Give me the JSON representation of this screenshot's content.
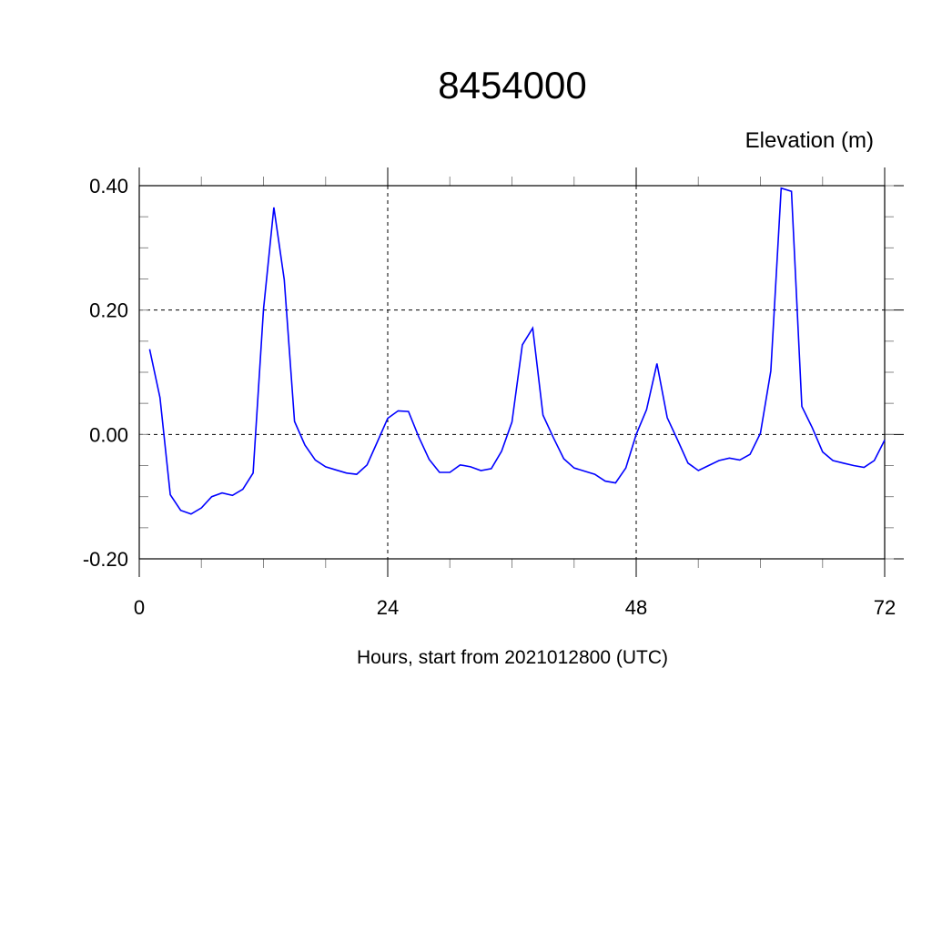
{
  "chart_data": {
    "type": "line",
    "title": "8454000",
    "ylabel": "Elevation (m)",
    "xlabel": "Hours, start from 2021012800 (UTC)",
    "xlim": [
      0,
      72
    ],
    "ylim": [
      -0.2,
      0.4
    ],
    "xticks": [
      0,
      24,
      48,
      72
    ],
    "xtick_labels": [
      "0",
      "24",
      "48",
      "72"
    ],
    "yticks": [
      -0.2,
      0.0,
      0.2,
      0.4
    ],
    "ytick_labels": [
      "-0.20",
      "0.00",
      "0.20",
      "0.40"
    ],
    "grid": true,
    "line_color": "#0000ff",
    "series": [
      {
        "x": [
          1,
          2,
          3,
          4,
          5,
          6,
          7,
          8,
          9,
          10,
          11,
          12,
          13,
          14,
          15,
          16,
          17,
          18,
          19,
          20,
          21,
          22,
          23,
          24,
          25,
          26,
          27,
          28,
          29,
          30,
          31,
          32,
          33,
          34,
          35,
          36,
          37,
          38,
          39,
          40,
          41,
          42,
          43,
          44,
          45,
          46,
          47,
          48,
          49,
          50,
          51,
          52,
          53,
          54,
          55,
          56,
          57,
          58,
          59,
          60,
          61,
          62,
          63,
          64,
          65,
          66,
          67,
          68,
          69,
          70,
          71,
          72
        ],
        "values": [
          0.137,
          0.059,
          -0.097,
          -0.122,
          -0.128,
          -0.118,
          -0.1,
          -0.094,
          -0.098,
          -0.088,
          -0.062,
          0.201,
          0.365,
          0.249,
          0.021,
          -0.017,
          -0.041,
          -0.052,
          -0.057,
          -0.062,
          -0.064,
          -0.049,
          -0.012,
          0.026,
          0.038,
          0.037,
          -0.004,
          -0.04,
          -0.061,
          -0.061,
          -0.049,
          -0.052,
          -0.058,
          -0.055,
          -0.027,
          0.02,
          0.144,
          0.171,
          0.031,
          -0.005,
          -0.039,
          -0.054,
          -0.059,
          -0.064,
          -0.075,
          -0.078,
          -0.054,
          0.0,
          0.04,
          0.114,
          0.027,
          -0.009,
          -0.046,
          -0.058,
          -0.05,
          -0.042,
          -0.038,
          -0.041,
          -0.032,
          0.002,
          0.102,
          0.396,
          0.391,
          0.045,
          0.011,
          -0.028,
          -0.042,
          -0.046,
          -0.05,
          -0.053,
          -0.042,
          -0.009
        ]
      }
    ]
  }
}
